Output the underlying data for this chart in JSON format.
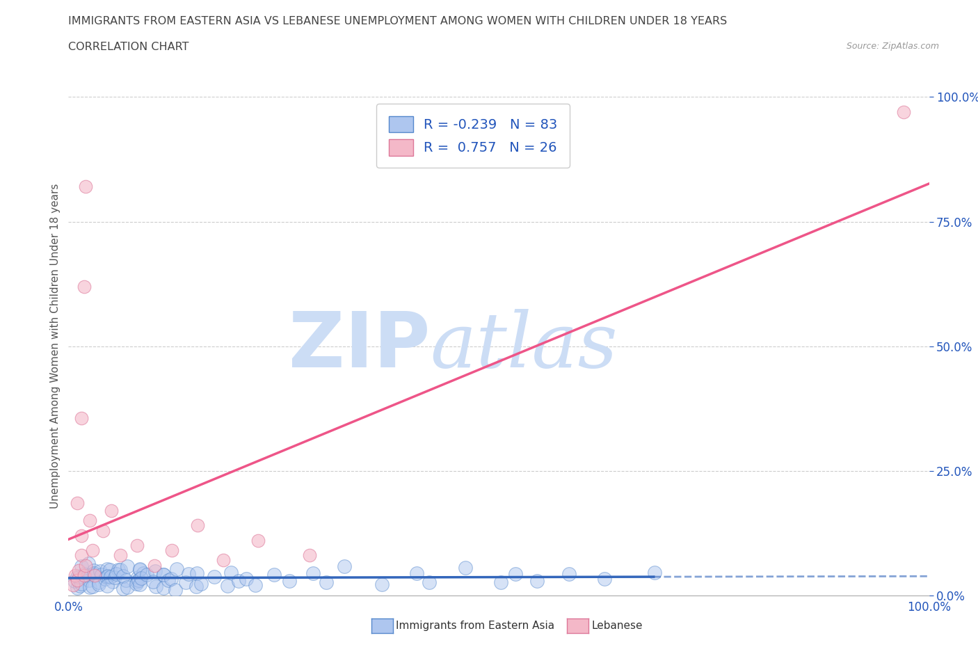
{
  "title_line1": "IMMIGRANTS FROM EASTERN ASIA VS LEBANESE UNEMPLOYMENT AMONG WOMEN WITH CHILDREN UNDER 18 YEARS",
  "title_line2": "CORRELATION CHART",
  "source_text": "Source: ZipAtlas.com",
  "ylabel": "Unemployment Among Women with Children Under 18 years",
  "xlim": [
    0.0,
    1.0
  ],
  "ylim": [
    0.0,
    1.0
  ],
  "xtick_vals": [
    0.0,
    1.0
  ],
  "xtick_labels": [
    "0.0%",
    "100.0%"
  ],
  "ytick_vals": [
    0.0,
    0.25,
    0.5,
    0.75,
    1.0
  ],
  "ytick_labels": [
    "0.0%",
    "25.0%",
    "50.0%",
    "75.0%",
    "100.0%"
  ],
  "series1_name": "Immigrants from Eastern Asia",
  "series1_color": "#aec6ef",
  "series1_edge_color": "#5588cc",
  "series1_R": -0.239,
  "series1_N": 83,
  "series1_line_color": "#3366bb",
  "series2_name": "Lebanese",
  "series2_color": "#f4b8c8",
  "series2_edge_color": "#dd7799",
  "series2_R": 0.757,
  "series2_N": 26,
  "series2_line_color": "#ee5588",
  "watermark_zip": "ZIP",
  "watermark_atlas": "atlas",
  "watermark_color": "#ccddf5",
  "background_color": "#ffffff",
  "grid_color": "#cccccc",
  "title_color": "#444444",
  "label_color": "#555555",
  "legend_color": "#2255bb",
  "tick_color": "#2255bb",
  "seed": 7,
  "series1_x": [
    0.005,
    0.008,
    0.01,
    0.012,
    0.015,
    0.015,
    0.018,
    0.02,
    0.02,
    0.022,
    0.025,
    0.025,
    0.028,
    0.03,
    0.03,
    0.032,
    0.035,
    0.035,
    0.038,
    0.04,
    0.04,
    0.042,
    0.045,
    0.045,
    0.048,
    0.05,
    0.05,
    0.052,
    0.055,
    0.055,
    0.058,
    0.06,
    0.065,
    0.065,
    0.07,
    0.07,
    0.072,
    0.075,
    0.075,
    0.08,
    0.08,
    0.082,
    0.085,
    0.085,
    0.088,
    0.09,
    0.09,
    0.095,
    0.1,
    0.1,
    0.105,
    0.11,
    0.11,
    0.115,
    0.12,
    0.125,
    0.13,
    0.135,
    0.14,
    0.145,
    0.15,
    0.16,
    0.17,
    0.18,
    0.19,
    0.2,
    0.21,
    0.22,
    0.24,
    0.26,
    0.28,
    0.3,
    0.32,
    0.36,
    0.4,
    0.42,
    0.46,
    0.5,
    0.52,
    0.55,
    0.58,
    0.62,
    0.68
  ],
  "series1_y": [
    0.02,
    0.03,
    0.04,
    0.02,
    0.03,
    0.05,
    0.04,
    0.02,
    0.06,
    0.03,
    0.04,
    0.02,
    0.05,
    0.03,
    0.04,
    0.02,
    0.05,
    0.03,
    0.04,
    0.02,
    0.06,
    0.03,
    0.04,
    0.02,
    0.05,
    0.03,
    0.04,
    0.02,
    0.05,
    0.03,
    0.04,
    0.02,
    0.05,
    0.03,
    0.04,
    0.02,
    0.05,
    0.03,
    0.04,
    0.02,
    0.05,
    0.03,
    0.04,
    0.02,
    0.05,
    0.03,
    0.04,
    0.02,
    0.05,
    0.03,
    0.04,
    0.02,
    0.05,
    0.03,
    0.04,
    0.02,
    0.05,
    0.03,
    0.04,
    0.02,
    0.05,
    0.03,
    0.04,
    0.02,
    0.05,
    0.03,
    0.04,
    0.02,
    0.05,
    0.03,
    0.04,
    0.02,
    0.05,
    0.03,
    0.04,
    0.02,
    0.05,
    0.03,
    0.04,
    0.02,
    0.05,
    0.03,
    0.04
  ],
  "series2_x": [
    0.005,
    0.008,
    0.01,
    0.01,
    0.012,
    0.015,
    0.015,
    0.015,
    0.018,
    0.018,
    0.02,
    0.02,
    0.025,
    0.028,
    0.03,
    0.04,
    0.05,
    0.06,
    0.08,
    0.1,
    0.12,
    0.15,
    0.18,
    0.22,
    0.28,
    0.97
  ],
  "series2_y": [
    0.02,
    0.04,
    0.185,
    0.03,
    0.05,
    0.355,
    0.08,
    0.12,
    0.62,
    0.04,
    0.82,
    0.06,
    0.15,
    0.09,
    0.04,
    0.13,
    0.17,
    0.08,
    0.1,
    0.06,
    0.09,
    0.14,
    0.07,
    0.11,
    0.08,
    0.97
  ]
}
